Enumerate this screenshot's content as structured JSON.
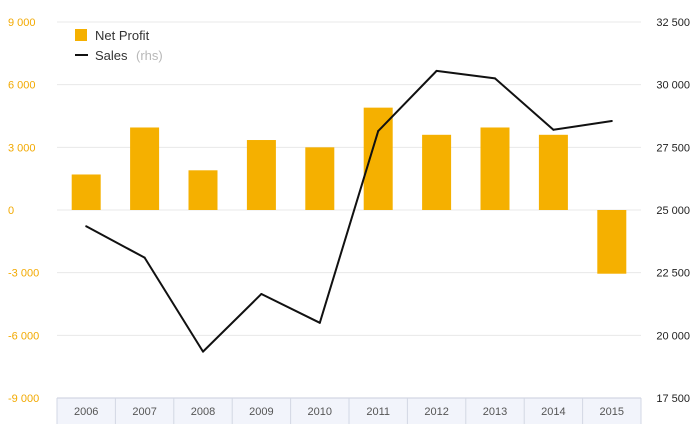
{
  "chart_data": {
    "type": "bar",
    "categories": [
      "2006",
      "2007",
      "2008",
      "2009",
      "2010",
      "2011",
      "2012",
      "2013",
      "2014",
      "2015"
    ],
    "series": [
      {
        "name": "Net Profit",
        "type": "bar",
        "axis": "left",
        "color": "#f5b000",
        "values": [
          1700,
          3950,
          1900,
          3350,
          3000,
          4900,
          3600,
          3950,
          3600,
          -3050
        ]
      },
      {
        "name": "Sales",
        "name_suffix": "(rhs)",
        "type": "line",
        "axis": "right",
        "color": "#111111",
        "values": [
          24350,
          23100,
          19350,
          21650,
          20500,
          28150,
          30550,
          30250,
          28200,
          28550
        ]
      }
    ],
    "y_left": {
      "range": [
        -9000,
        9000
      ],
      "ticks": [
        -9000,
        -6000,
        -3000,
        0,
        3000,
        6000,
        9000
      ],
      "tick_labels": [
        "-9 000",
        "-6 000",
        "-3 000",
        "0",
        "3 000",
        "6 000",
        "9 000"
      ],
      "color": "#f2a900"
    },
    "y_right": {
      "range": [
        17500,
        32500
      ],
      "ticks": [
        17500,
        20000,
        22500,
        25000,
        27500,
        30000,
        32500
      ],
      "tick_labels": [
        "17 500",
        "20 000",
        "22 500",
        "25 000",
        "27 500",
        "30 000",
        "32 500"
      ]
    },
    "grid": true,
    "legend_position": "top-left"
  }
}
